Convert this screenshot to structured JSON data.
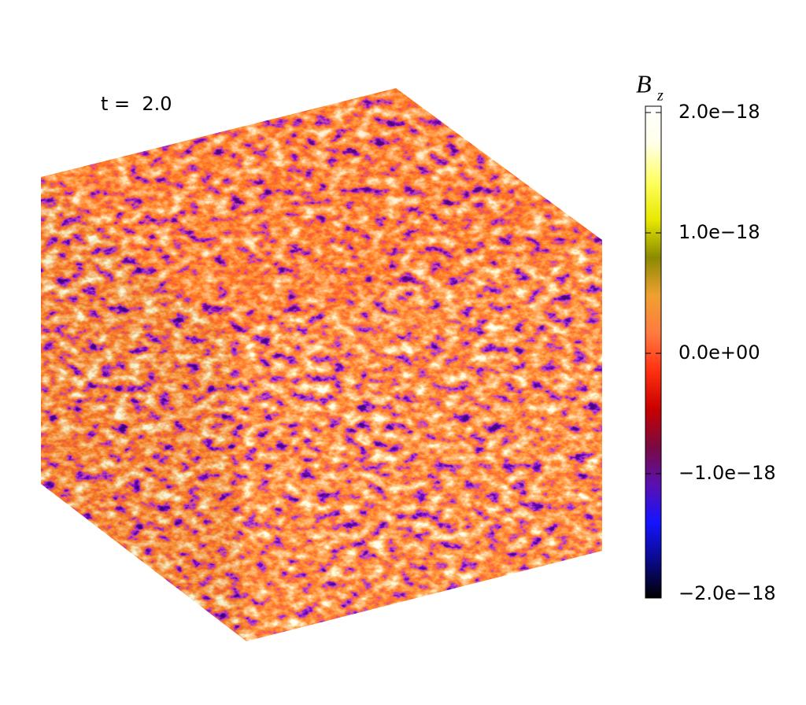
{
  "chart_data": {
    "type": "cube-field",
    "annotation": "t =  2.0",
    "colorbar": {
      "label": "B",
      "label_subscript": "z",
      "lim": [
        -2e-18,
        2e-18
      ],
      "ticks": [
        {
          "value": 2e-18,
          "label": "2.0e−18"
        },
        {
          "value": 1e-18,
          "label": "1.0e−18"
        },
        {
          "value": 0,
          "label": "0.0e+00"
        },
        {
          "value": -1e-18,
          "label": "−1.0e−18"
        },
        {
          "value": -2e-18,
          "label": "−2.0e−18"
        }
      ],
      "colormap": [
        "#000000",
        "#0a0a8a",
        "#1414ff",
        "#5a10b0",
        "#7a0a40",
        "#c80000",
        "#ff3010",
        "#ff7a40",
        "#f0a030",
        "#8a8a00",
        "#e8e800",
        "#ffff60",
        "#ffffe8",
        "#ffffff"
      ]
    }
  }
}
